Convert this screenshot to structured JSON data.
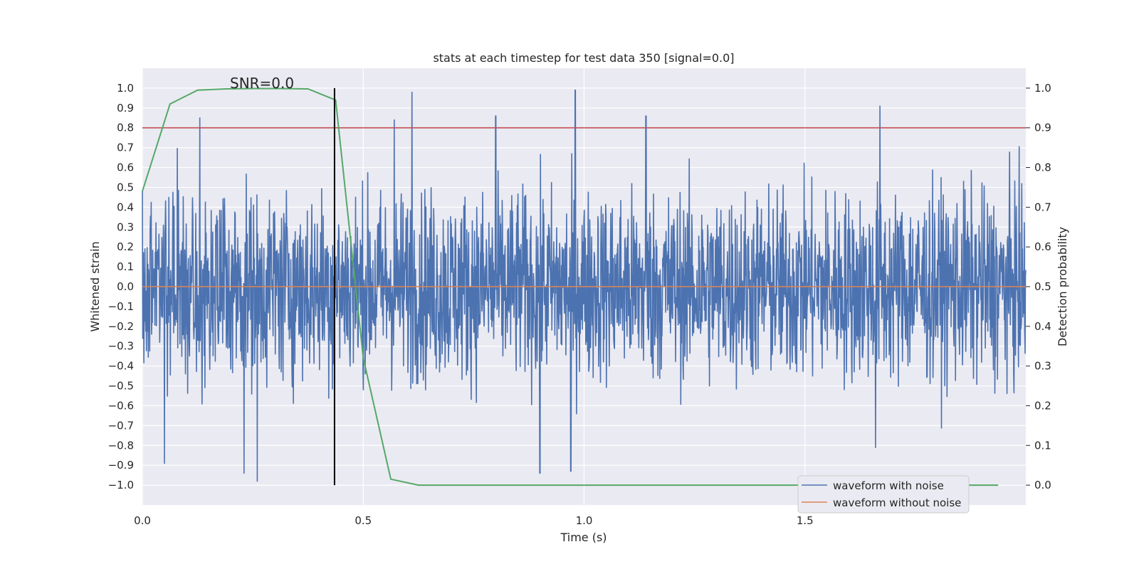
{
  "chart_data": {
    "type": "line",
    "title": "stats at each timestep for test data 350 [signal=0.0]",
    "xlabel": "Time (s)",
    "ylabel": "Whitened strain",
    "ylabel_right": "Detection probability",
    "xlim": [
      0.0,
      2.0
    ],
    "ylim": [
      -1.1,
      1.1
    ],
    "ylim_right": [
      -0.05,
      1.05
    ],
    "x_ticks": [
      0.0,
      0.5,
      1.0,
      1.5
    ],
    "x_tick_labels": [
      "0.0",
      "0.5",
      "1.0",
      "1.5"
    ],
    "y_ticks": [
      1.0,
      0.9,
      0.8,
      0.7,
      0.6,
      0.5,
      0.4,
      0.3,
      0.2,
      0.1,
      0.0,
      -0.1,
      -0.2,
      -0.3,
      -0.4,
      -0.5,
      -0.6,
      -0.7,
      -0.8,
      -0.9,
      -1.0
    ],
    "y_tick_labels": [
      "1.0",
      "0.9",
      "0.8",
      "0.7",
      "0.6",
      "0.5",
      "0.4",
      "0.3",
      "0.2",
      "0.1",
      "0.0",
      "−0.1",
      "−0.2",
      "−0.3",
      "−0.4",
      "−0.5",
      "−0.6",
      "−0.7",
      "−0.8",
      "−0.9",
      "−1.0"
    ],
    "y_ticks_right": [
      1.0,
      0.9,
      0.8,
      0.7,
      0.6,
      0.5,
      0.4,
      0.3,
      0.2,
      0.1,
      0.0
    ],
    "y_tick_labels_right": [
      "1.0",
      "0.9",
      "0.8",
      "0.7",
      "0.6",
      "0.5",
      "0.4",
      "0.3",
      "0.2",
      "0.1",
      "0.0"
    ],
    "annotation": "SNR=0.0",
    "threshold_line": {
      "axis": "right",
      "y": 0.9,
      "color": "#c44e52"
    },
    "vertical_marker": {
      "x": 0.435,
      "y_range": [
        -1.0,
        1.0
      ],
      "color": "#000000"
    },
    "series": [
      {
        "name": "waveform with noise",
        "axis": "left",
        "color": "#4c72b0",
        "description_only": "noise trace sampled at 4096 Hz",
        "spikes": [
          [
            0.13,
            0.85
          ],
          [
            0.5,
            -0.52
          ],
          [
            0.57,
            0.84
          ],
          [
            0.61,
            0.98
          ],
          [
            0.8,
            0.86
          ],
          [
            0.98,
            1.0
          ],
          [
            1.14,
            0.86
          ],
          [
            1.67,
            0.91
          ],
          [
            0.05,
            -0.89
          ],
          [
            0.23,
            -0.94
          ],
          [
            0.26,
            -0.98
          ],
          [
            0.9,
            -0.94
          ],
          [
            0.97,
            -0.93
          ],
          [
            1.66,
            -0.81
          ]
        ],
        "amplitude": 0.32
      },
      {
        "name": "waveform without noise",
        "axis": "left",
        "color": "#dd8452",
        "x": [
          0.0,
          2.0
        ],
        "y": [
          0.0,
          0.0
        ]
      },
      {
        "name": "",
        "axis": "right",
        "color": "#55a868",
        "x": [
          0.0,
          0.0625,
          0.125,
          0.1875,
          0.25,
          0.3125,
          0.375,
          0.4375,
          0.5,
          0.5625,
          0.625,
          0.6875,
          0.75,
          1.0,
          1.25,
          1.5,
          1.75,
          1.9375
        ],
        "y": [
          0.74,
          0.96,
          0.995,
          0.998,
          0.999,
          0.999,
          0.998,
          0.97,
          0.32,
          0.015,
          0.0,
          0.0,
          0.0,
          0.0,
          0.0,
          0.0,
          0.0,
          0.0
        ]
      }
    ],
    "legend": {
      "placement": "lower-right",
      "entries": [
        "waveform with noise",
        "waveform without noise"
      ]
    },
    "grid": true,
    "colors": {
      "background": "#eaeaf2",
      "grid": "#ffffff"
    }
  }
}
